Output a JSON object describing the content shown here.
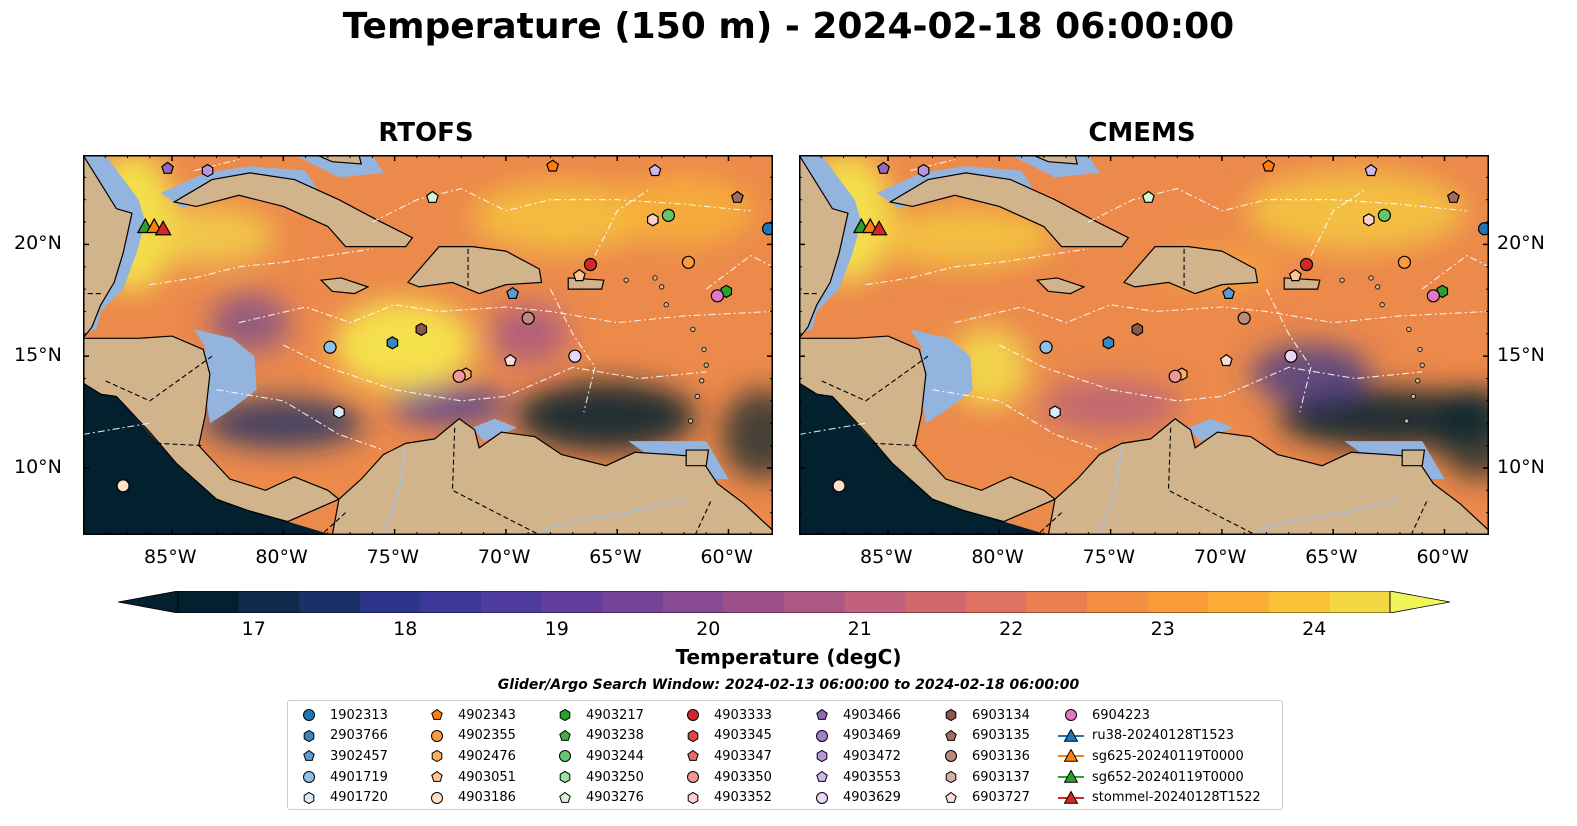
{
  "title": "Temperature (150 m) - 2024-02-18 06:00:00",
  "panels": [
    {
      "title": "RTOFS"
    },
    {
      "title": "CMEMS"
    }
  ],
  "axes": {
    "lon_ticks": [
      "85°W",
      "80°W",
      "75°W",
      "70°W",
      "65°W",
      "60°W"
    ],
    "lat_ticks": [
      "20°N",
      "15°N",
      "10°N"
    ],
    "lon_range": [
      -89,
      -58
    ],
    "lat_range": [
      7,
      24
    ]
  },
  "colorbar": {
    "label": "Temperature (degC)",
    "ticks": [
      "17",
      "18",
      "19",
      "20",
      "21",
      "22",
      "23",
      "24"
    ],
    "range": [
      16.5,
      24.5
    ],
    "colors": [
      "#03202f",
      "#0f2a4a",
      "#1b3068",
      "#2b3488",
      "#3d3799",
      "#4f3c9e",
      "#623f9f",
      "#754499",
      "#884a93",
      "#9b508c",
      "#ad5784",
      "#c0607a",
      "#d0686e",
      "#df7262",
      "#ec7f52",
      "#f48d44",
      "#f89c3a",
      "#fbad34",
      "#f9c136",
      "#f4d843"
    ]
  },
  "legend": {
    "title": "Glider/Argo Search Window: 2024-02-13 06:00:00 to 2024-02-18 06:00:00",
    "items": [
      {
        "label": "1902313",
        "marker": "circle",
        "color": "#1f77b4"
      },
      {
        "label": "2903766",
        "marker": "hexagon",
        "color": "#3a86c0"
      },
      {
        "label": "3902457",
        "marker": "pentagon",
        "color": "#5a9bd3"
      },
      {
        "label": "4901719",
        "marker": "circle",
        "color": "#8fc0e8"
      },
      {
        "label": "4901720",
        "marker": "hexagon",
        "color": "#d7ecfb"
      },
      {
        "label": "4902343",
        "marker": "pentagon",
        "color": "#ff7f0e"
      },
      {
        "label": "4902355",
        "marker": "circle",
        "color": "#ff9a3c"
      },
      {
        "label": "4902476",
        "marker": "hexagon",
        "color": "#ffad5f"
      },
      {
        "label": "4903051",
        "marker": "pentagon",
        "color": "#ffc590"
      },
      {
        "label": "4903186",
        "marker": "circle",
        "color": "#ffe0c4"
      },
      {
        "label": "4903217",
        "marker": "hexagon",
        "color": "#2ca02c"
      },
      {
        "label": "4903238",
        "marker": "pentagon",
        "color": "#3fb04a"
      },
      {
        "label": "4903244",
        "marker": "circle",
        "color": "#66c46b"
      },
      {
        "label": "4903250",
        "marker": "hexagon",
        "color": "#9be29a"
      },
      {
        "label": "4903276",
        "marker": "pentagon",
        "color": "#d3f7d0"
      },
      {
        "label": "4903333",
        "marker": "circle",
        "color": "#d62728"
      },
      {
        "label": "4903345",
        "marker": "hexagon",
        "color": "#e04848"
      },
      {
        "label": "4903347",
        "marker": "pentagon",
        "color": "#e86a6a"
      },
      {
        "label": "4903350",
        "marker": "circle",
        "color": "#f29898"
      },
      {
        "label": "4903352",
        "marker": "hexagon",
        "color": "#fbd0d0"
      },
      {
        "label": "4903466",
        "marker": "pentagon",
        "color": "#9467bd"
      },
      {
        "label": "4903469",
        "marker": "circle",
        "color": "#a57fcc"
      },
      {
        "label": "4903472",
        "marker": "hexagon",
        "color": "#b996da"
      },
      {
        "label": "4903553",
        "marker": "pentagon",
        "color": "#d1b6ea"
      },
      {
        "label": "4903629",
        "marker": "circle",
        "color": "#e9d6f8"
      },
      {
        "label": "6903134",
        "marker": "hexagon",
        "color": "#8c564b"
      },
      {
        "label": "6903135",
        "marker": "pentagon",
        "color": "#a46c60"
      },
      {
        "label": "6903136",
        "marker": "circle",
        "color": "#bc8a7e"
      },
      {
        "label": "6903137",
        "marker": "hexagon",
        "color": "#d9aea4"
      },
      {
        "label": "6903727",
        "marker": "pentagon",
        "color": "#f7ddd6"
      },
      {
        "label": "6904223",
        "marker": "circle",
        "color": "#e377c2"
      },
      {
        "label": "ru38-20240128T1523",
        "marker": "triangle-line",
        "color": "#1f77b4"
      },
      {
        "label": "sg625-20240119T0000",
        "marker": "triangle-line",
        "color": "#ff7f0e"
      },
      {
        "label": "sg652-20240119T0000",
        "marker": "triangle-line",
        "color": "#2ca02c"
      },
      {
        "label": "stommel-20240128T1522",
        "marker": "triangle-line",
        "color": "#d62728"
      }
    ]
  },
  "platforms": [
    {
      "label": "1902313",
      "lon": -58.2,
      "lat": 20.7
    },
    {
      "label": "2903766",
      "lon": -75.1,
      "lat": 15.6
    },
    {
      "label": "3902457",
      "lon": -69.7,
      "lat": 17.8
    },
    {
      "label": "4901719",
      "lon": -77.9,
      "lat": 15.4
    },
    {
      "label": "4901720",
      "lon": -77.5,
      "lat": 12.5
    },
    {
      "label": "4902343",
      "lon": -67.9,
      "lat": 23.5
    },
    {
      "label": "4902355",
      "lon": -61.8,
      "lat": 19.2
    },
    {
      "label": "4902476",
      "lon": -71.8,
      "lat": 14.2
    },
    {
      "label": "4903051",
      "lon": -66.7,
      "lat": 18.6
    },
    {
      "label": "4903186",
      "lon": -87.2,
      "lat": 9.2
    },
    {
      "label": "4903217",
      "lon": -60.1,
      "lat": 17.9
    },
    {
      "label": "4903244",
      "lon": -62.7,
      "lat": 21.3
    },
    {
      "label": "4903276",
      "lon": -73.3,
      "lat": 22.1
    },
    {
      "label": "4903333",
      "lon": -66.2,
      "lat": 19.1
    },
    {
      "label": "4903350",
      "lon": -72.1,
      "lat": 14.1
    },
    {
      "label": "4903352",
      "lon": -63.4,
      "lat": 21.1
    },
    {
      "label": "4903466",
      "lon": -85.2,
      "lat": 23.4
    },
    {
      "label": "4903472",
      "lon": -83.4,
      "lat": 23.3
    },
    {
      "label": "4903553",
      "lon": -63.3,
      "lat": 23.3
    },
    {
      "label": "4903629",
      "lon": -66.9,
      "lat": 15.0
    },
    {
      "label": "6903134",
      "lon": -73.8,
      "lat": 16.2
    },
    {
      "label": "6903136",
      "lon": -69.0,
      "lat": 16.7
    },
    {
      "label": "6903727",
      "lon": -69.8,
      "lat": 14.8
    },
    {
      "label": "6904223",
      "lon": -60.5,
      "lat": 17.7
    },
    {
      "label": "6903135",
      "lon": -59.6,
      "lat": 22.1
    },
    {
      "label": "sg652-20240119T0000",
      "lon": -86.2,
      "lat": 20.8
    },
    {
      "label": "sg625-20240119T0000",
      "lon": -85.8,
      "lat": 20.8
    },
    {
      "label": "stommel-20240128T1522",
      "lon": -85.4,
      "lat": 20.7
    }
  ]
}
